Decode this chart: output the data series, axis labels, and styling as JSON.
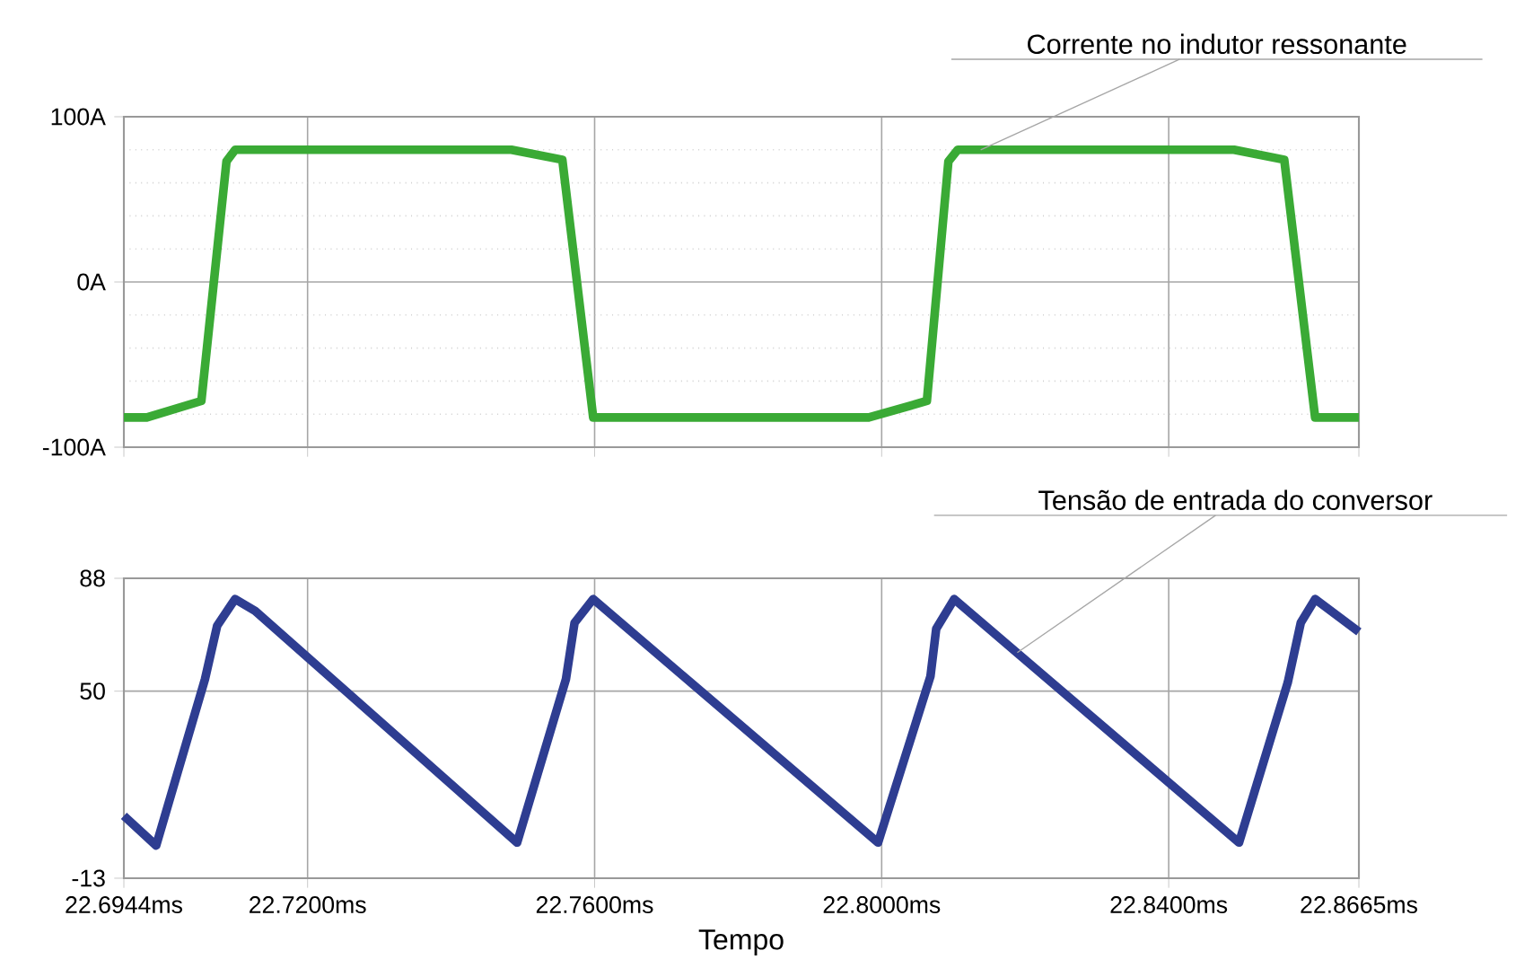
{
  "chart_data": [
    {
      "type": "line",
      "tick_labels": "y",
      "grid": true,
      "xlim": [
        22.6944,
        22.8665
      ],
      "xticks": [
        {
          "value": 22.6944,
          "label": null
        },
        {
          "value": 22.72,
          "label": null
        },
        {
          "value": 22.76,
          "label": null
        },
        {
          "value": 22.8,
          "label": null
        },
        {
          "value": 22.84,
          "label": null
        },
        {
          "value": 22.8665,
          "label": null
        }
      ],
      "ylim": [
        -100,
        100
      ],
      "yticks": [
        {
          "value": -100,
          "label": "-100A"
        },
        {
          "value": 0,
          "label": "0A"
        },
        {
          "value": 100,
          "label": "100A"
        }
      ],
      "annotations": [
        {
          "text": "Corrente no indutor ressonante",
          "x": 22.8138,
          "y": 80
        }
      ],
      "x": [
        22.6944,
        22.6976,
        22.7052,
        22.7087,
        22.7099,
        22.7484,
        22.7555,
        22.7598,
        22.7982,
        22.8063,
        22.8093,
        22.8106,
        22.8491,
        22.8561,
        22.8604,
        22.8665
      ],
      "series": [
        {
          "color": "#3aaa35",
          "values": [
            -82,
            -82,
            -72,
            73,
            80,
            80,
            74,
            -82,
            -82,
            -72,
            73,
            80,
            80,
            74,
            -82,
            -82
          ]
        }
      ]
    },
    {
      "type": "line",
      "grid": true,
      "xlabel": "Tempo",
      "xlim": [
        22.6944,
        22.8665
      ],
      "xticks": [
        {
          "value": 22.6944,
          "label": "22.6944ms"
        },
        {
          "value": 22.72,
          "label": "22.7200ms"
        },
        {
          "value": 22.76,
          "label": "22.7600ms"
        },
        {
          "value": 22.8,
          "label": "22.8000ms"
        },
        {
          "value": 22.84,
          "label": "22.8400ms"
        },
        {
          "value": 22.8665,
          "label": "22.8665ms"
        }
      ],
      "ylim": [
        -13,
        88
      ],
      "yticks": [
        -13,
        50,
        88
      ],
      "annotations": [
        {
          "text": "Tensão de entrada do conversor",
          "x": 22.8189,
          "y": 63
        }
      ],
      "x": [
        22.6944,
        22.6989,
        22.7057,
        22.7074,
        22.7099,
        22.7127,
        22.7492,
        22.756,
        22.7572,
        22.7598,
        22.7995,
        22.8068,
        22.8076,
        22.8101,
        22.8498,
        22.8566,
        22.8584,
        22.8604,
        22.8665
      ],
      "series": [
        {
          "color": "#2e3d91",
          "values": [
            8,
            -2,
            54,
            72,
            81,
            77,
            -1,
            54,
            73,
            81,
            -1,
            55,
            71,
            81,
            -1,
            53,
            73,
            81,
            70
          ]
        }
      ]
    }
  ]
}
